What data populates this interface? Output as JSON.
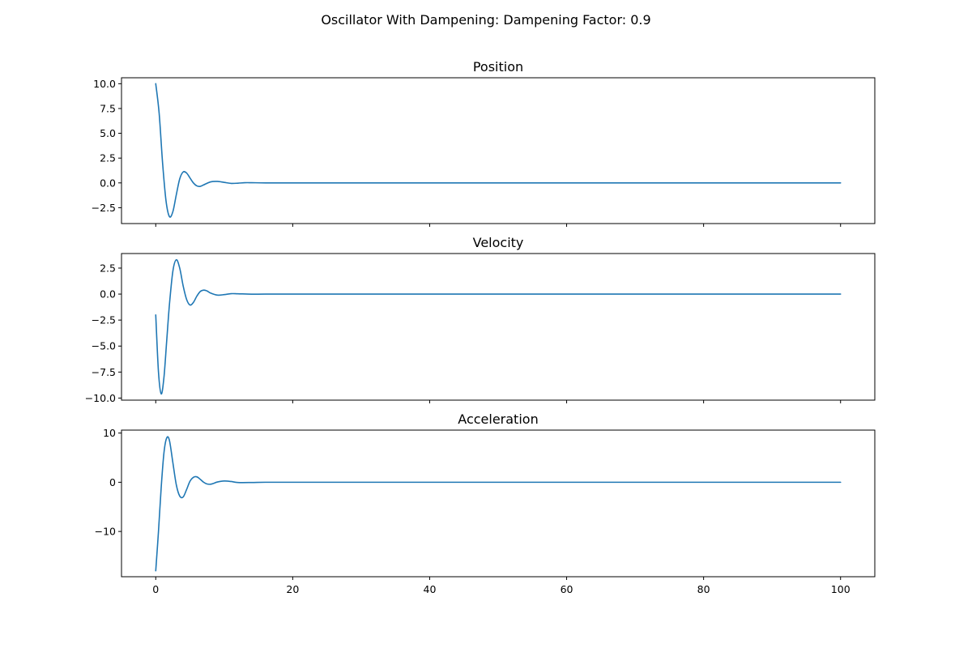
{
  "figure": {
    "title": "Oscillator With Dampening: Dampening Factor: 0.9"
  },
  "chart_data": [
    {
      "type": "line",
      "title": "Position",
      "xlabel": "",
      "ylabel": "",
      "xlim": [
        -5,
        105
      ],
      "ylim": [
        -4.1,
        10.6
      ],
      "xticks": [
        0,
        20,
        40,
        60,
        80,
        100
      ],
      "xtick_labels_visible": false,
      "yticks": [
        10.0,
        7.5,
        5.0,
        2.5,
        0.0,
        -2.5
      ],
      "ytick_labels": [
        "10.0",
        "7.5",
        "5.0",
        "2.5",
        "0.0",
        "−2.5"
      ],
      "grid": false,
      "color": "#1f77b4",
      "series": [
        {
          "x": [
            0,
            0.5,
            1,
            1.5,
            2,
            2.5,
            3,
            3.5,
            4,
            4.5,
            5,
            5.5,
            6,
            6.5,
            7,
            8,
            9,
            10,
            11,
            12,
            13,
            14,
            16,
            20,
            30,
            50,
            70,
            100
          ],
          "values": [
            10.0,
            7.0,
            2.0,
            -1.8,
            -3.4,
            -2.9,
            -1.2,
            0.4,
            1.1,
            1.0,
            0.5,
            0.0,
            -0.3,
            -0.35,
            -0.2,
            0.1,
            0.15,
            0.05,
            -0.05,
            -0.03,
            0.02,
            0.02,
            0.0,
            0.0,
            0.0,
            0.0,
            0.0,
            0.0
          ]
        }
      ]
    },
    {
      "type": "line",
      "title": "Velocity",
      "xlabel": "",
      "ylabel": "",
      "xlim": [
        -5,
        105
      ],
      "ylim": [
        -10.2,
        3.9
      ],
      "xticks": [
        0,
        20,
        40,
        60,
        80,
        100
      ],
      "xtick_labels_visible": false,
      "yticks": [
        2.5,
        0.0,
        -2.5,
        -5.0,
        -7.5,
        -10.0
      ],
      "ytick_labels": [
        "2.5",
        "0.0",
        "−2.5",
        "−5.0",
        "−7.5",
        "−10.0"
      ],
      "grid": false,
      "color": "#1f77b4",
      "series": [
        {
          "x": [
            0,
            0.4,
            0.8,
            1.2,
            1.6,
            2,
            2.5,
            3,
            3.5,
            4,
            4.5,
            5,
            5.5,
            6,
            6.5,
            7,
            7.5,
            8,
            9,
            10,
            11,
            12,
            14,
            16,
            20,
            30,
            50,
            70,
            100
          ],
          "values": [
            -2.0,
            -7.5,
            -9.6,
            -8.0,
            -4.5,
            -1.0,
            2.2,
            3.3,
            2.5,
            0.8,
            -0.5,
            -1.05,
            -0.8,
            -0.2,
            0.25,
            0.38,
            0.3,
            0.1,
            -0.1,
            -0.05,
            0.04,
            0.03,
            -0.01,
            0.0,
            0.0,
            0.0,
            0.0,
            0.0,
            0.0
          ]
        }
      ]
    },
    {
      "type": "line",
      "title": "Acceleration",
      "xlabel": "",
      "ylabel": "",
      "xlim": [
        -5,
        105
      ],
      "ylim": [
        -19.2,
        10.6
      ],
      "xticks": [
        0,
        20,
        40,
        60,
        80,
        100
      ],
      "xtick_labels": [
        "0",
        "20",
        "40",
        "60",
        "80",
        "100"
      ],
      "yticks": [
        10,
        0,
        -10
      ],
      "ytick_labels": [
        "10",
        "0",
        "−10"
      ],
      "grid": false,
      "color": "#1f77b4",
      "series": [
        {
          "x": [
            0,
            0.4,
            0.8,
            1.2,
            1.6,
            2,
            2.5,
            3,
            3.5,
            4,
            4.5,
            5,
            5.5,
            6,
            6.5,
            7,
            7.5,
            8,
            8.5,
            9,
            10,
            11,
            12,
            14,
            16,
            20,
            30,
            50,
            70,
            100
          ],
          "values": [
            -18.0,
            -10.0,
            -1.0,
            6.0,
            9.0,
            8.5,
            4.0,
            -0.5,
            -2.8,
            -3.0,
            -1.5,
            0.2,
            1.0,
            1.1,
            0.6,
            0.0,
            -0.35,
            -0.4,
            -0.2,
            0.05,
            0.25,
            0.15,
            -0.05,
            -0.05,
            0.0,
            0.0,
            0.0,
            0.0,
            0.0,
            0.0
          ]
        }
      ]
    }
  ]
}
